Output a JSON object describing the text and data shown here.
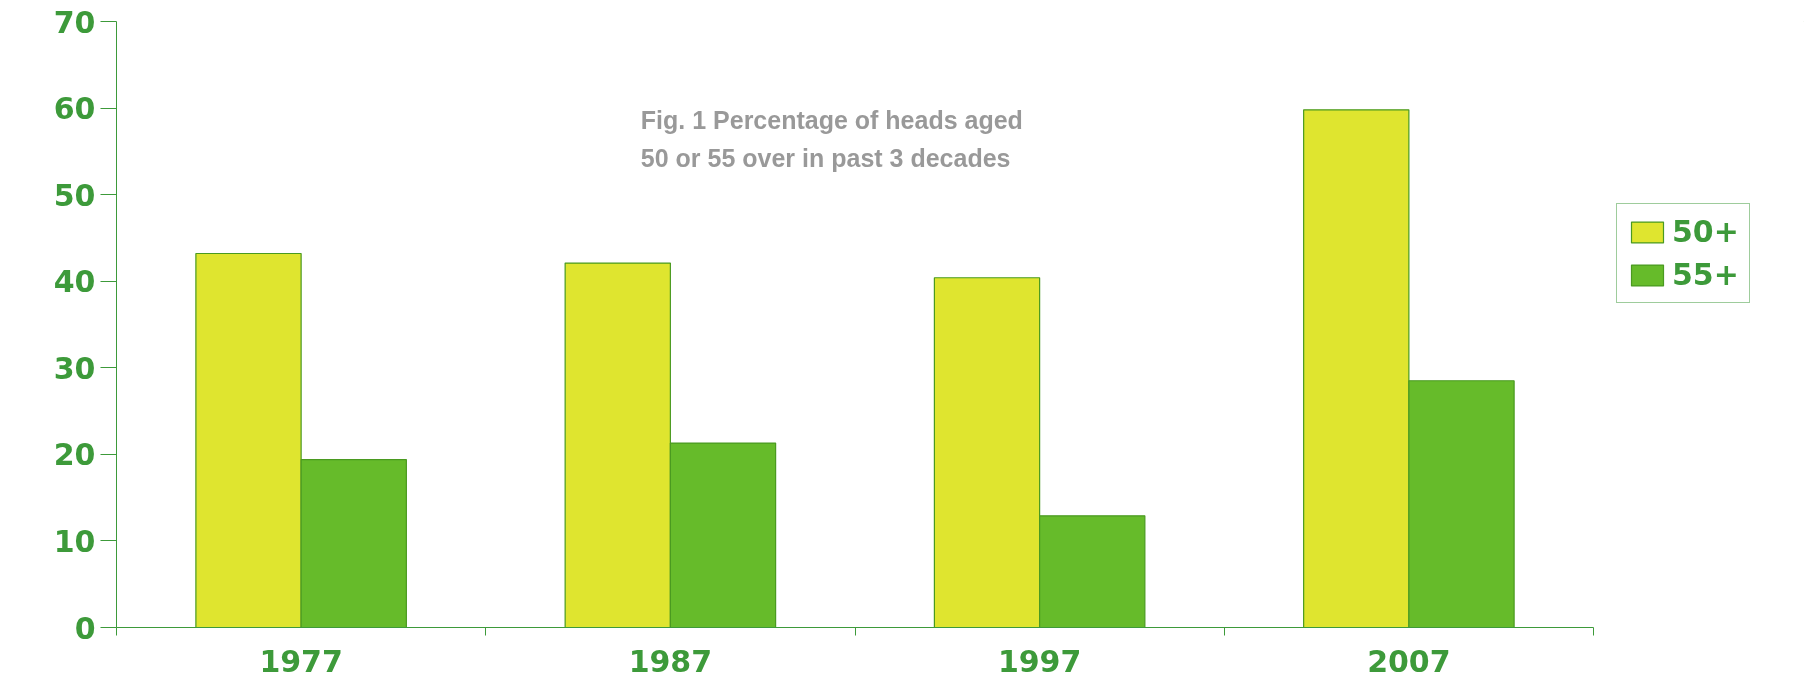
{
  "chart_data": {
    "type": "bar",
    "title": "Fig. 1 Percentage of heads aged\n50 or 55 over in past 3 decades",
    "categories": [
      "1977",
      "1987",
      "1997",
      "2007"
    ],
    "series": [
      {
        "name": "50+",
        "color": "#dfe52f",
        "values": [
          43.2,
          42.1,
          40.4,
          59.8
        ]
      },
      {
        "name": "55+",
        "color": "#66bb2a",
        "values": [
          19.4,
          21.3,
          12.9,
          28.5
        ]
      }
    ],
    "ylim": [
      0,
      70
    ],
    "yticks": [
      0,
      10,
      20,
      30,
      40,
      50,
      60,
      70
    ],
    "grid": false,
    "legend": "right"
  }
}
